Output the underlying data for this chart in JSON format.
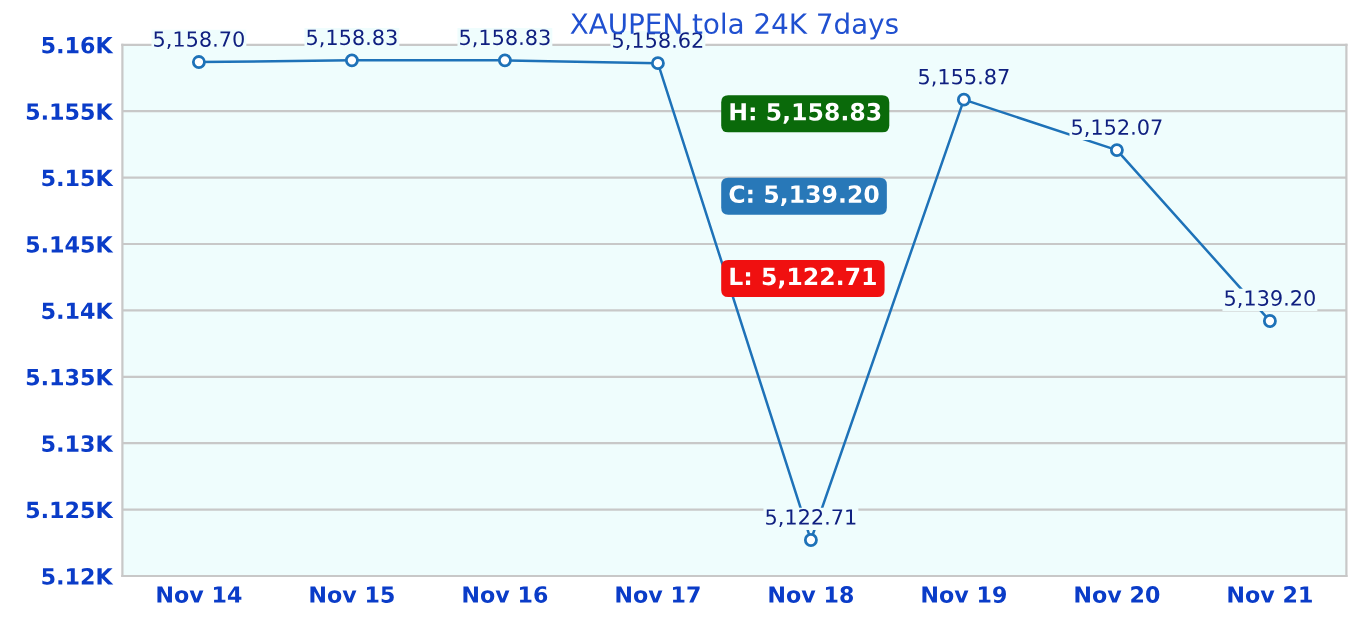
{
  "chart_data": {
    "type": "line",
    "title": "XAUPEN tola 24K 7days",
    "categories": [
      "Nov 14",
      "Nov 15",
      "Nov 16",
      "Nov 17",
      "Nov 18",
      "Nov 19",
      "Nov 20",
      "Nov 21"
    ],
    "series": [
      {
        "color": "#1e72b8",
        "values": [
          5158.7,
          5158.83,
          5158.83,
          5158.62,
          5122.71,
          5155.87,
          5152.07,
          5139.2
        ],
        "value_labels": [
          "5,158.70",
          "5,158.83",
          "5,158.83",
          "5,158.62",
          "5,122.71",
          "5,155.87",
          "5,152.07",
          "5,139.20"
        ]
      }
    ],
    "ylim": [
      5120,
      5160
    ],
    "yticks": [
      {
        "value": 5120,
        "label": "5.12K"
      },
      {
        "value": 5125,
        "label": "5.125K"
      },
      {
        "value": 5130,
        "label": "5.13K"
      },
      {
        "value": 5135,
        "label": "5.135K"
      },
      {
        "value": 5140,
        "label": "5.14K"
      },
      {
        "value": 5145,
        "label": "5.145K"
      },
      {
        "value": 5150,
        "label": "5.15K"
      },
      {
        "value": 5155,
        "label": "5.155K"
      },
      {
        "value": 5160,
        "label": "5.16K"
      }
    ],
    "grid": "y",
    "marker": "circle",
    "line_style": "solid",
    "legend": false,
    "annotations": [
      "H: 5,158.83",
      "C: 5,139.20",
      "L: 5,122.71"
    ]
  }
}
